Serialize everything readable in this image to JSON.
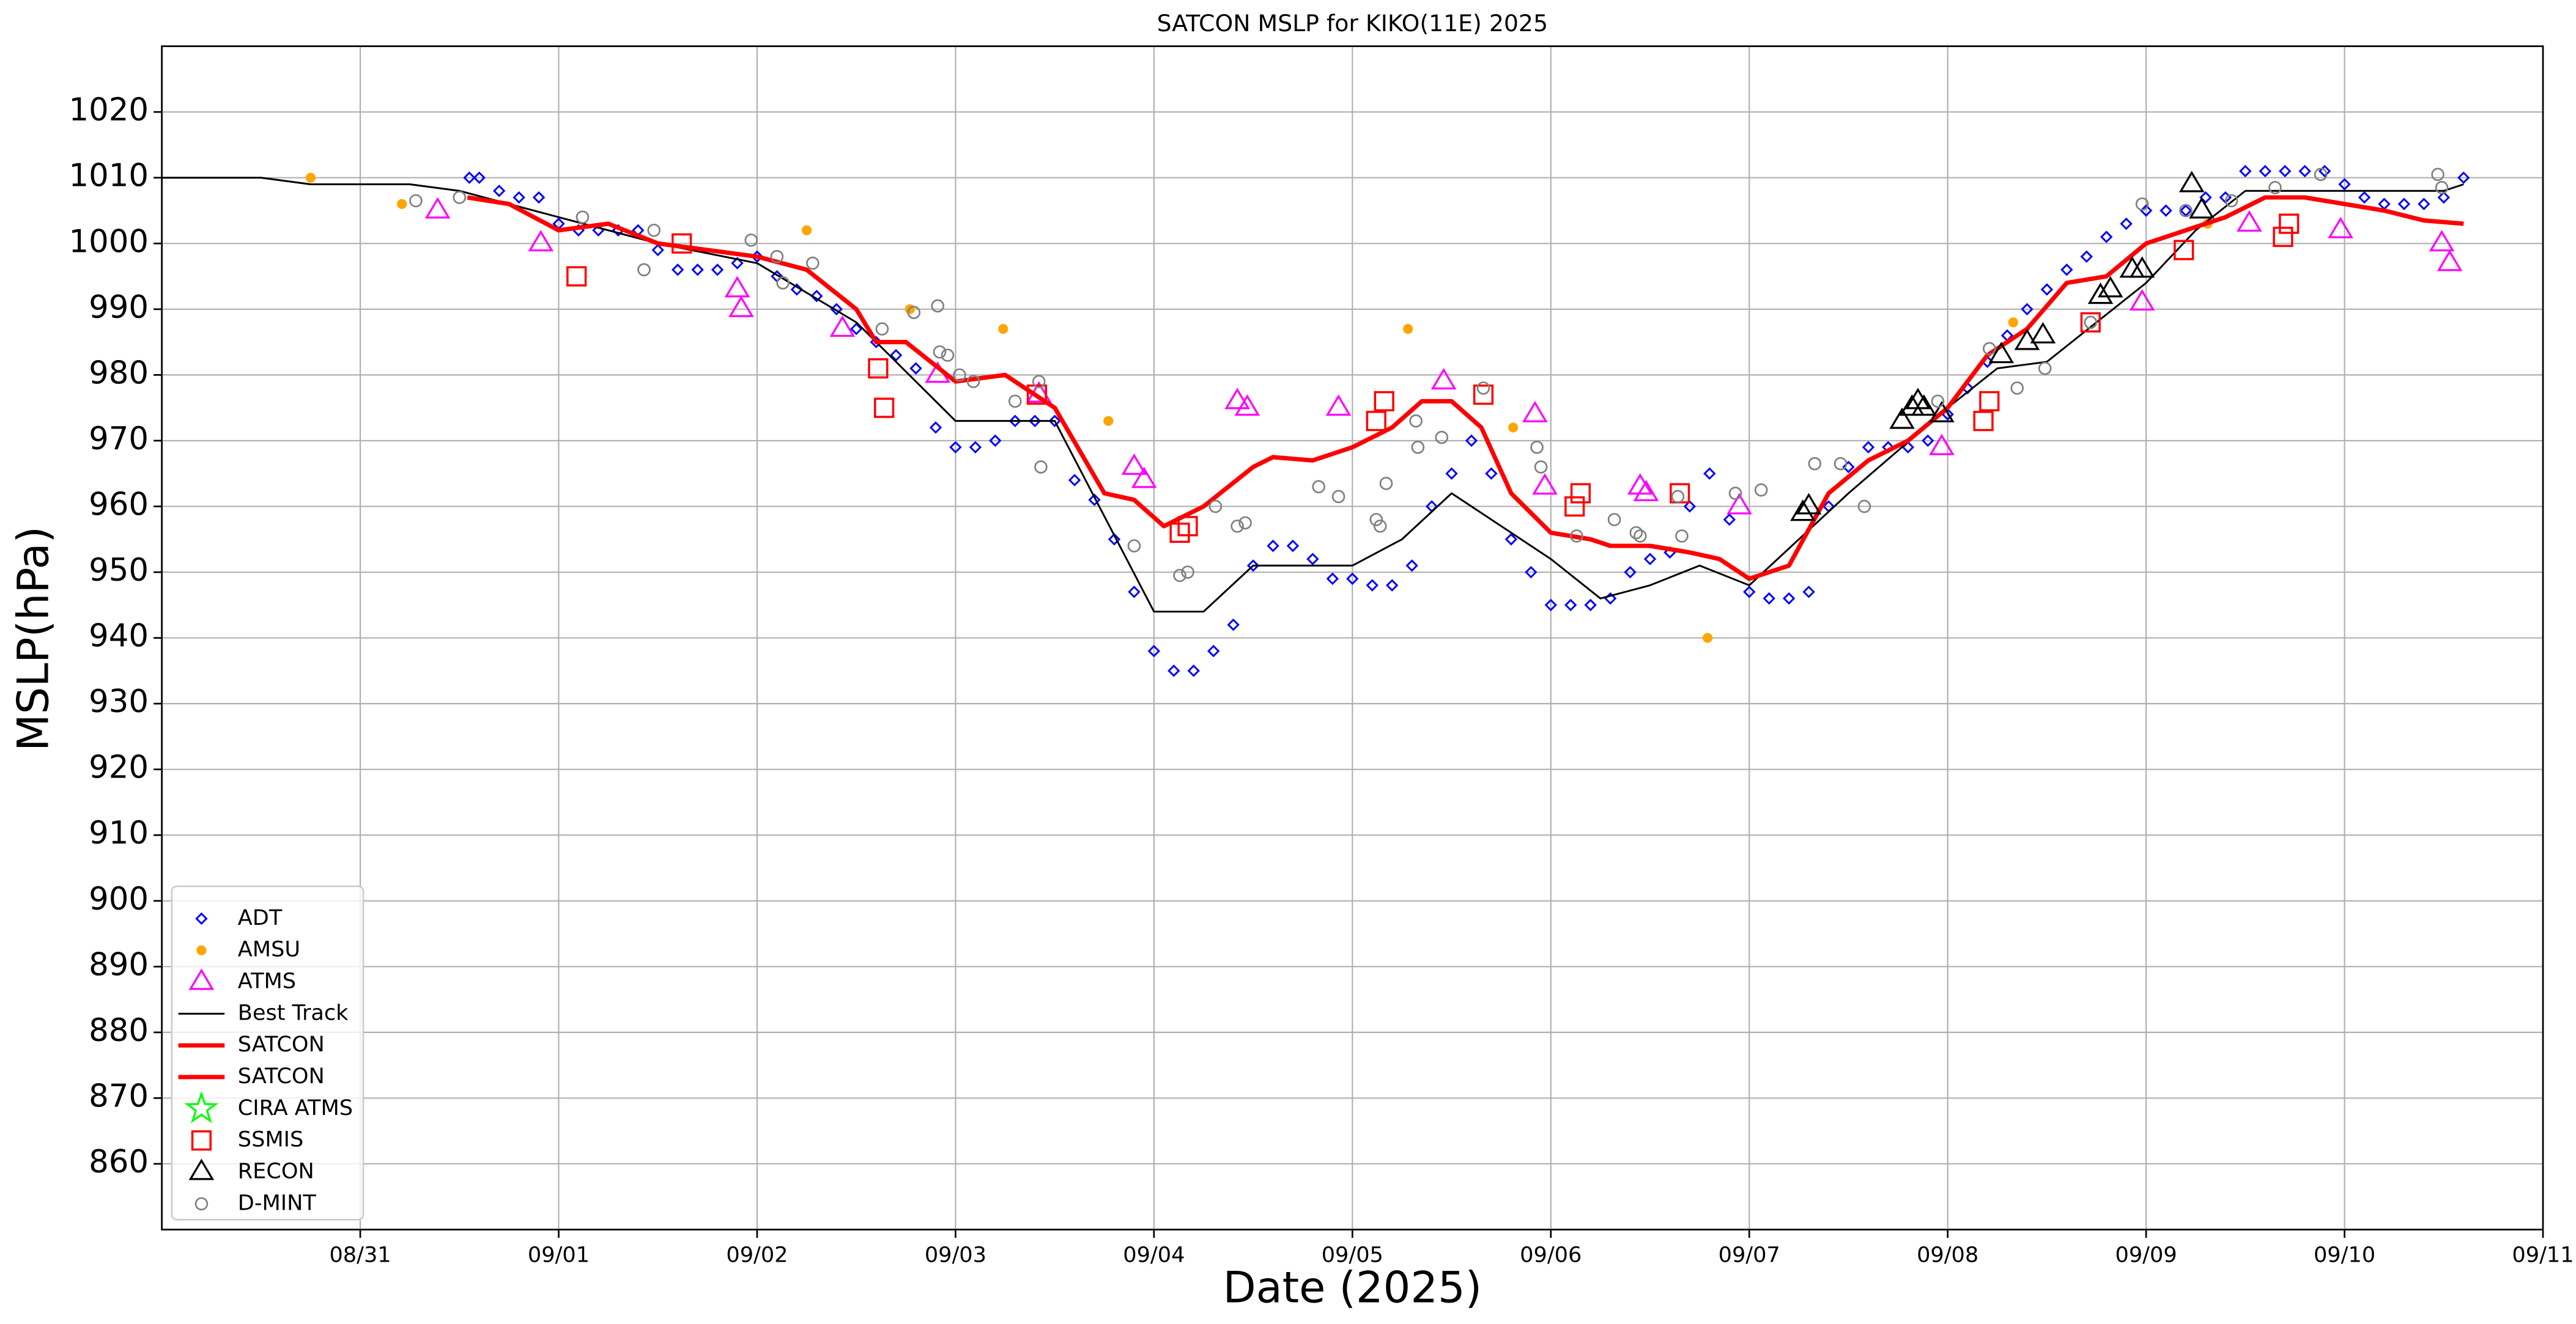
{
  "chart_data": {
    "type": "scatter",
    "title": "SATCON MSLP for KIKO(11E) 2025",
    "xlabel": "Date (2025)",
    "ylabel": "MSLP(hPa)",
    "xlim": [
      -1,
      11
    ],
    "xticks": [
      {
        "value": 0,
        "label": "08/31"
      },
      {
        "value": 1,
        "label": "09/01"
      },
      {
        "value": 2,
        "label": "09/02"
      },
      {
        "value": 3,
        "label": "09/03"
      },
      {
        "value": 4,
        "label": "09/04"
      },
      {
        "value": 5,
        "label": "09/05"
      },
      {
        "value": 6,
        "label": "09/06"
      },
      {
        "value": 7,
        "label": "09/07"
      },
      {
        "value": 8,
        "label": "09/08"
      },
      {
        "value": 9,
        "label": "09/09"
      },
      {
        "value": 10,
        "label": "09/10"
      },
      {
        "value": 11,
        "label": "09/11"
      }
    ],
    "ylim": [
      850,
      1030
    ],
    "yticks": [
      860,
      870,
      880,
      890,
      900,
      910,
      920,
      930,
      940,
      950,
      960,
      970,
      980,
      990,
      1000,
      1010,
      1020
    ],
    "grid": true,
    "legend": "lower left",
    "series": [
      {
        "name": "ADT",
        "color": "#0000ff",
        "marker": "diamond",
        "x": [
          0.55,
          0.6,
          0.7,
          0.8,
          0.9,
          1.0,
          1.1,
          1.2,
          1.3,
          1.4,
          1.5,
          1.6,
          1.7,
          1.8,
          1.9,
          2.0,
          2.1,
          2.2,
          2.3,
          2.4,
          2.5,
          2.6,
          2.7,
          2.8,
          2.9,
          3.0,
          3.1,
          3.2,
          3.3,
          3.4,
          3.5,
          3.6,
          3.7,
          3.8,
          3.9,
          4.0,
          4.1,
          4.2,
          4.3,
          4.4,
          4.5,
          4.6,
          4.7,
          4.8,
          4.9,
          5.0,
          5.1,
          5.2,
          5.3,
          5.4,
          5.5,
          5.6,
          5.7,
          5.8,
          5.9,
          6.0,
          6.1,
          6.2,
          6.3,
          6.4,
          6.5,
          6.6,
          6.7,
          6.8,
          6.9,
          7.0,
          7.1,
          7.2,
          7.3,
          7.4,
          7.5,
          7.6,
          7.7,
          7.8,
          7.9,
          8.0,
          8.1,
          8.2,
          8.3,
          8.4,
          8.5,
          8.6,
          8.7,
          8.8,
          8.9,
          9.0,
          9.1,
          9.2,
          9.3,
          9.4,
          9.5,
          9.6,
          9.7,
          9.8,
          9.9,
          10.0,
          10.1,
          10.2,
          10.3,
          10.4,
          10.5,
          10.6
        ],
        "values": [
          1010,
          1010,
          1008,
          1007,
          1007,
          1003,
          1002,
          1002,
          1002,
          1002,
          999,
          996,
          996,
          996,
          997,
          998,
          995,
          993,
          992,
          990,
          987,
          985,
          983,
          981,
          972,
          969,
          969,
          970,
          973,
          973,
          973,
          964,
          961,
          955,
          947,
          938,
          935,
          935,
          938,
          942,
          951,
          954,
          954,
          952,
          949,
          949,
          948,
          948,
          951,
          960,
          965,
          970,
          965,
          955,
          950,
          945,
          945,
          945,
          946,
          950,
          952,
          953,
          960,
          965,
          958,
          947,
          946,
          946,
          947,
          960,
          966,
          969,
          969,
          969,
          970,
          974,
          978,
          982,
          986,
          990,
          993,
          996,
          998,
          1001,
          1003,
          1005,
          1005,
          1005,
          1007,
          1007,
          1011,
          1011,
          1011,
          1011,
          1011,
          1009,
          1007,
          1006,
          1006,
          1006,
          1007,
          1010
        ]
      },
      {
        "name": "AMSU",
        "color": "#ffa500",
        "marker": "dot",
        "x": [
          -0.25,
          0.21,
          2.25,
          2.77,
          3.24,
          3.77,
          5.28,
          5.81,
          6.79,
          8.33,
          9.31
        ],
        "values": [
          1010,
          1006,
          1002,
          990,
          987,
          973,
          987,
          972,
          940,
          988,
          1003
        ]
      },
      {
        "name": "ATMS",
        "color": "#ff00ff",
        "marker": "triangle",
        "x": [
          0.39,
          0.91,
          1.9,
          1.92,
          2.43,
          2.91,
          3.42,
          3.9,
          3.95,
          4.42,
          4.47,
          4.93,
          5.46,
          5.92,
          5.97,
          6.45,
          6.48,
          6.95,
          7.97,
          8.98,
          9.52,
          9.98,
          10.49,
          10.53
        ],
        "values": [
          1005,
          1000,
          993,
          990,
          987,
          980,
          977,
          966,
          964,
          976,
          975,
          975,
          979,
          974,
          963,
          963,
          962,
          960,
          969,
          991,
          1003,
          1002,
          1000,
          997
        ]
      },
      {
        "name": "Best Track",
        "color": "#000000",
        "marker": "line",
        "style": "thin",
        "x": [
          -1,
          -0.5,
          -0.25,
          0.25,
          0.5,
          1.0,
          1.5,
          2.0,
          2.5,
          3.0,
          3.5,
          4.0,
          4.25,
          4.5,
          5.0,
          5.25,
          5.5,
          6.0,
          6.25,
          6.5,
          6.75,
          7.0,
          7.5,
          8.0,
          8.25,
          8.5,
          8.75,
          9.0,
          9.25,
          9.5,
          10.0,
          10.5,
          10.6
        ],
        "values": [
          1010,
          1010,
          1009,
          1009,
          1008,
          1004,
          1000,
          997,
          988,
          973,
          973,
          944,
          944,
          951,
          951,
          955,
          962,
          952,
          946,
          948,
          951,
          948,
          962,
          975,
          981,
          982,
          988,
          994,
          1002,
          1008,
          1008,
          1008,
          1009
        ]
      },
      {
        "name": "SATCON",
        "color": "#ff0000",
        "marker": "line",
        "style": "thick",
        "x": [
          0.54,
          0.75,
          1.0,
          1.25,
          1.5,
          2.0,
          2.25,
          2.5,
          2.6,
          2.75,
          3.0,
          3.25,
          3.5,
          3.75,
          3.9,
          4.05,
          4.25,
          4.5,
          4.6,
          4.8,
          5.0,
          5.2,
          5.35,
          5.5,
          5.65,
          5.8,
          6.0,
          6.2,
          6.3,
          6.5,
          6.7,
          6.85,
          7.0,
          7.2,
          7.4,
          7.6,
          7.8,
          8.0,
          8.2,
          8.4,
          8.6,
          8.8,
          9.0,
          9.2,
          9.4,
          9.6,
          9.8,
          10.0,
          10.2,
          10.4,
          10.6
        ],
        "values": [
          1007,
          1006,
          1002,
          1003,
          1000,
          998,
          996,
          990,
          985,
          985,
          979,
          980,
          975,
          962,
          961,
          957,
          960,
          966,
          967.5,
          967,
          969,
          972,
          976,
          976,
          972,
          962,
          956,
          955,
          954,
          954,
          953,
          952,
          949,
          951,
          962,
          967,
          970,
          975,
          983,
          987,
          994,
          995,
          1000,
          1002,
          1004,
          1007,
          1007,
          1006,
          1005,
          1003.5,
          1003
        ]
      },
      {
        "name": "SATCON",
        "color": "#ff0000",
        "marker": "line",
        "style": "thick",
        "x": [
          0.54,
          0.75,
          1.0,
          1.25,
          1.5,
          2.0,
          2.25,
          2.5,
          2.6,
          2.75,
          3.0,
          3.25,
          3.5,
          3.75,
          3.9,
          4.05,
          4.25,
          4.5,
          4.6,
          4.8,
          5.0,
          5.2,
          5.35,
          5.5,
          5.65,
          5.8,
          6.0,
          6.2,
          6.3,
          6.5,
          6.7,
          6.85,
          7.0,
          7.2,
          7.4,
          7.6,
          7.8,
          8.0,
          8.2,
          8.4,
          8.6,
          8.8,
          9.0,
          9.2,
          9.4,
          9.6,
          9.8,
          10.0,
          10.2,
          10.4,
          10.6
        ],
        "values": [
          1007,
          1006,
          1002,
          1003,
          1000,
          998,
          996,
          990,
          985,
          985,
          979,
          980,
          975,
          962,
          961,
          957,
          960,
          966,
          967.5,
          967,
          969,
          972,
          976,
          976,
          972,
          962,
          956,
          955,
          954,
          954,
          953,
          952,
          949,
          951,
          962,
          967,
          970,
          975,
          983,
          987,
          994,
          995,
          1000,
          1002,
          1004,
          1007,
          1007,
          1006,
          1005,
          1003.5,
          1003
        ]
      },
      {
        "name": "CIRA ATMS",
        "color": "#00ff00",
        "marker": "star",
        "x": [],
        "values": []
      },
      {
        "name": "SSMIS",
        "color": "#ff0000",
        "marker": "square",
        "x": [
          1.09,
          1.62,
          2.61,
          2.64,
          3.41,
          4.13,
          4.17,
          5.12,
          5.16,
          5.66,
          6.12,
          6.15,
          6.65,
          8.18,
          8.21,
          8.72,
          9.19,
          9.69,
          9.72
        ],
        "values": [
          995,
          1000,
          981,
          975,
          977,
          956,
          957,
          973,
          976,
          977,
          960,
          962,
          962,
          973,
          976,
          988,
          999,
          1001,
          1003
        ]
      },
      {
        "name": "RECON",
        "color": "#000000",
        "marker": "triangle",
        "x": [
          7.27,
          7.3,
          7.77,
          7.82,
          7.85,
          7.88,
          7.97,
          8.27,
          8.4,
          8.48,
          8.77,
          8.82,
          8.93,
          8.98,
          9.23,
          9.28
        ],
        "values": [
          959,
          960,
          973,
          975,
          976,
          975,
          974,
          983,
          985,
          986,
          992,
          993,
          996,
          996,
          1009,
          1005
        ]
      },
      {
        "name": "D-MINT",
        "color": "#808080",
        "marker": "circle",
        "x": [
          0.28,
          0.5,
          1.12,
          1.43,
          1.48,
          1.97,
          2.1,
          2.13,
          2.28,
          2.63,
          2.79,
          2.91,
          2.92,
          2.96,
          3.02,
          3.09,
          3.3,
          3.42,
          3.43,
          3.9,
          4.13,
          4.17,
          4.31,
          4.42,
          4.46,
          4.83,
          4.93,
          5.12,
          5.14,
          5.17,
          5.32,
          5.33,
          5.45,
          5.66,
          5.93,
          5.95,
          6.13,
          6.32,
          6.43,
          6.45,
          6.64,
          6.66,
          6.93,
          7.06,
          7.33,
          7.46,
          7.58,
          7.95,
          8.21,
          8.35,
          8.49,
          8.72,
          8.98,
          9.2,
          9.43,
          9.65,
          9.88,
          10.47,
          10.49
        ],
        "values": [
          1006.5,
          1007,
          1004,
          996,
          1002,
          1000.5,
          998,
          994,
          997,
          987,
          989.5,
          990.5,
          983.5,
          983,
          980,
          979,
          976,
          979,
          966,
          954,
          949.5,
          950,
          960,
          957,
          957.5,
          963,
          961.5,
          958,
          957,
          963.5,
          973,
          969,
          970.5,
          978,
          969,
          966,
          955.5,
          958,
          956,
          955.5,
          961.5,
          955.5,
          962,
          962.5,
          966.5,
          966.5,
          960,
          976,
          984,
          978,
          981,
          988,
          1006,
          1005,
          1006.5,
          1008.5,
          1010.5,
          1010.5,
          1008.5
        ]
      }
    ]
  }
}
